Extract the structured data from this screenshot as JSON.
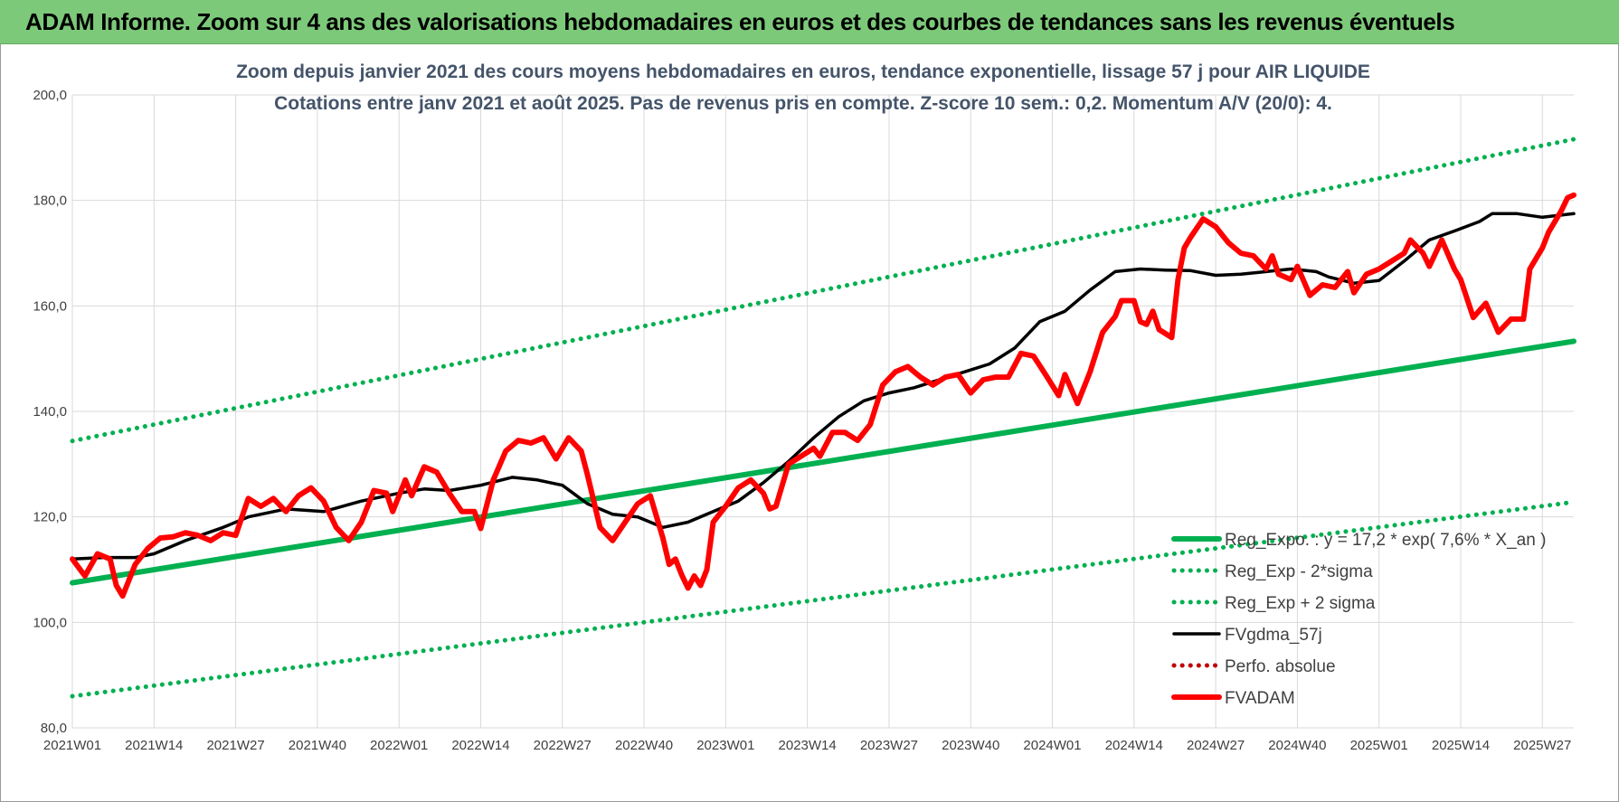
{
  "banner": {
    "title": "ADAM Informe. Zoom sur 4 ans des valorisations hebdomadaires en euros et des courbes de tendances sans les revenus éventuels"
  },
  "colors": {
    "banner_bg": "#7dc97a",
    "trend": "#00b050",
    "fvgdma": "#000000",
    "fvadam": "#ff0000",
    "perfo": "#c00000",
    "title_text": "#44546a",
    "gridline": "#d9d9d9"
  },
  "chart_data": {
    "type": "line",
    "title": "Zoom depuis janvier 2021 des cours moyens hebdomadaires en euros, tendance exponentielle, lissage 57 j pour AIR LIQUIDE",
    "subtitle": "Cotations entre janv 2021 et août 2025. Pas de revenus pris en compte. Z-score 10 sem.: 0,2. Momentum A/V (20/0): 4.",
    "ylim": [
      80,
      200
    ],
    "yticks": [
      "80,0",
      "100,0",
      "120,0",
      "140,0",
      "160,0",
      "180,0",
      "200,0"
    ],
    "yticks_values": [
      80,
      100,
      120,
      140,
      160,
      180,
      200
    ],
    "x_range_weeks": [
      0,
      239
    ],
    "xticks": [
      {
        "label": "2021W01",
        "week": 0
      },
      {
        "label": "2021W14",
        "week": 13
      },
      {
        "label": "2021W27",
        "week": 26
      },
      {
        "label": "2021W40",
        "week": 39
      },
      {
        "label": "2022W01",
        "week": 52
      },
      {
        "label": "2022W14",
        "week": 65
      },
      {
        "label": "2022W27",
        "week": 78
      },
      {
        "label": "2022W40",
        "week": 91
      },
      {
        "label": "2023W01",
        "week": 104
      },
      {
        "label": "2023W14",
        "week": 117
      },
      {
        "label": "2023W27",
        "week": 130
      },
      {
        "label": "2023W40",
        "week": 143
      },
      {
        "label": "2024W01",
        "week": 156
      },
      {
        "label": "2024W14",
        "week": 169
      },
      {
        "label": "2024W27",
        "week": 182
      },
      {
        "label": "2024W40",
        "week": 195
      },
      {
        "label": "2025W01",
        "week": 208
      },
      {
        "label": "2025W14",
        "week": 221
      },
      {
        "label": "2025W27",
        "week": 234
      }
    ],
    "grid": true,
    "legend_position": "bottom-right",
    "series": [
      {
        "name": "Reg_Expo. : y = 17,2 * exp( 7,6% * X_an )",
        "style": "solid-thick",
        "color": "#00b050",
        "points": [
          [
            0,
            107.5
          ],
          [
            239,
            153.3
          ]
        ]
      },
      {
        "name": "Reg_Exp - 2*sigma",
        "style": "dotted",
        "color": "#00b050",
        "points": [
          [
            0,
            86.0
          ],
          [
            239,
            122.8
          ]
        ]
      },
      {
        "name": "Reg_Exp + 2 sigma",
        "style": "dotted",
        "color": "#00b050",
        "points": [
          [
            0,
            134.4
          ],
          [
            239,
            191.6
          ]
        ]
      },
      {
        "name": "FVgdma_57j",
        "style": "solid",
        "color": "#000000",
        "points": [
          [
            0,
            112
          ],
          [
            5,
            112.3
          ],
          [
            10,
            112.3
          ],
          [
            13,
            113
          ],
          [
            18,
            115.5
          ],
          [
            24,
            118
          ],
          [
            28,
            120
          ],
          [
            34,
            121.5
          ],
          [
            40,
            121
          ],
          [
            46,
            123
          ],
          [
            52,
            124.5
          ],
          [
            56,
            125.3
          ],
          [
            60,
            125
          ],
          [
            65,
            126
          ],
          [
            70,
            127.5
          ],
          [
            74,
            127
          ],
          [
            78,
            126
          ],
          [
            82,
            122.5
          ],
          [
            86,
            120.5
          ],
          [
            90,
            120
          ],
          [
            94,
            118
          ],
          [
            98,
            119
          ],
          [
            102,
            121
          ],
          [
            106,
            123
          ],
          [
            110,
            126.5
          ],
          [
            114,
            130.5
          ],
          [
            118,
            135
          ],
          [
            122,
            139
          ],
          [
            126,
            142
          ],
          [
            130,
            143.5
          ],
          [
            134,
            144.5
          ],
          [
            138,
            146
          ],
          [
            142,
            147.5
          ],
          [
            146,
            149
          ],
          [
            150,
            152
          ],
          [
            154,
            157
          ],
          [
            158,
            159
          ],
          [
            162,
            163
          ],
          [
            166,
            166.5
          ],
          [
            170,
            167
          ],
          [
            174,
            166.8
          ],
          [
            178,
            166.7
          ],
          [
            182,
            165.8
          ],
          [
            186,
            166
          ],
          [
            190,
            166.5
          ],
          [
            194,
            167
          ],
          [
            198,
            166.5
          ],
          [
            200,
            165.5
          ],
          [
            204,
            164.3
          ],
          [
            208,
            164.8
          ],
          [
            212,
            168.5
          ],
          [
            216,
            172.5
          ],
          [
            220,
            174.2
          ],
          [
            224,
            176
          ],
          [
            226,
            177.5
          ],
          [
            230,
            177.5
          ],
          [
            234,
            176.8
          ],
          [
            239,
            177.5
          ]
        ]
      },
      {
        "name": "Perfo. absolue",
        "style": "dotted",
        "color": "#c00000",
        "points": []
      },
      {
        "name": "FVADAM",
        "style": "solid-thick",
        "color": "#ff0000",
        "points": [
          [
            0,
            112
          ],
          [
            2,
            108.8
          ],
          [
            4,
            113
          ],
          [
            6,
            112
          ],
          [
            7,
            107
          ],
          [
            8,
            105
          ],
          [
            10,
            111
          ],
          [
            12,
            114
          ],
          [
            14,
            116
          ],
          [
            16,
            116.2
          ],
          [
            18,
            117
          ],
          [
            20,
            116.5
          ],
          [
            22,
            115.5
          ],
          [
            24,
            117
          ],
          [
            26,
            116.5
          ],
          [
            28,
            123.5
          ],
          [
            30,
            122
          ],
          [
            32,
            123.5
          ],
          [
            34,
            121
          ],
          [
            36,
            124
          ],
          [
            38,
            125.5
          ],
          [
            40,
            123
          ],
          [
            42,
            118
          ],
          [
            44,
            115.5
          ],
          [
            46,
            119
          ],
          [
            48,
            125
          ],
          [
            50,
            124.5
          ],
          [
            51,
            121
          ],
          [
            53,
            127
          ],
          [
            54,
            124
          ],
          [
            56,
            129.5
          ],
          [
            58,
            128.5
          ],
          [
            60,
            124.5
          ],
          [
            62,
            121
          ],
          [
            64,
            121
          ],
          [
            65,
            117.8
          ],
          [
            67,
            127
          ],
          [
            69,
            132.5
          ],
          [
            71,
            134.5
          ],
          [
            73,
            134
          ],
          [
            75,
            135
          ],
          [
            77,
            131
          ],
          [
            79,
            135
          ],
          [
            81,
            132.5
          ],
          [
            82,
            128
          ],
          [
            84,
            118
          ],
          [
            86,
            115.5
          ],
          [
            88,
            119
          ],
          [
            90,
            122.5
          ],
          [
            92,
            124
          ],
          [
            94,
            116
          ],
          [
            95,
            111
          ],
          [
            96,
            112
          ],
          [
            97,
            109
          ],
          [
            98,
            106.5
          ],
          [
            99,
            108.8
          ],
          [
            100,
            107
          ],
          [
            101,
            110
          ],
          [
            102,
            119
          ],
          [
            104,
            122
          ],
          [
            106,
            125.5
          ],
          [
            108,
            127
          ],
          [
            110,
            124.5
          ],
          [
            111,
            121.5
          ],
          [
            112,
            122
          ],
          [
            114,
            130
          ],
          [
            116,
            131.5
          ],
          [
            118,
            133
          ],
          [
            119,
            131.5
          ],
          [
            121,
            136
          ],
          [
            123,
            136
          ],
          [
            125,
            134.5
          ],
          [
            127,
            137.5
          ],
          [
            129,
            145
          ],
          [
            131,
            147.5
          ],
          [
            133,
            148.5
          ],
          [
            135,
            146.5
          ],
          [
            137,
            145
          ],
          [
            139,
            146.5
          ],
          [
            141,
            147
          ],
          [
            143,
            143.5
          ],
          [
            145,
            146
          ],
          [
            147,
            146.5
          ],
          [
            149,
            146.5
          ],
          [
            151,
            151
          ],
          [
            153,
            150.5
          ],
          [
            155,
            146.8
          ],
          [
            157,
            143
          ],
          [
            158,
            147
          ],
          [
            160,
            141.5
          ],
          [
            162,
            147.5
          ],
          [
            164,
            155
          ],
          [
            166,
            158
          ],
          [
            167,
            161
          ],
          [
            169,
            161
          ],
          [
            170,
            157
          ],
          [
            171,
            156.5
          ],
          [
            172,
            159
          ],
          [
            173,
            155.5
          ],
          [
            175,
            154
          ],
          [
            176,
            165
          ],
          [
            177,
            171
          ],
          [
            178,
            173
          ],
          [
            180,
            176.5
          ],
          [
            182,
            175
          ],
          [
            184,
            172
          ],
          [
            186,
            170
          ],
          [
            188,
            169.5
          ],
          [
            190,
            167
          ],
          [
            191,
            169.5
          ],
          [
            192,
            166
          ],
          [
            194,
            165
          ],
          [
            195,
            167.5
          ],
          [
            197,
            162
          ],
          [
            199,
            164
          ],
          [
            201,
            163.5
          ],
          [
            203,
            166.5
          ],
          [
            204,
            162.5
          ],
          [
            206,
            166
          ],
          [
            208,
            167
          ],
          [
            210,
            168.5
          ],
          [
            212,
            170
          ],
          [
            213,
            172.5
          ],
          [
            215,
            170
          ],
          [
            216,
            167.5
          ],
          [
            218,
            172.5
          ],
          [
            220,
            167
          ],
          [
            221,
            165
          ],
          [
            223,
            157.8
          ],
          [
            225,
            160.5
          ],
          [
            227,
            155
          ],
          [
            229,
            157.5
          ],
          [
            231,
            157.5
          ],
          [
            232,
            167
          ],
          [
            234,
            171
          ],
          [
            235,
            174
          ],
          [
            237,
            178
          ],
          [
            238,
            180.5
          ],
          [
            239,
            181
          ]
        ]
      }
    ],
    "legend": [
      {
        "label": "Reg_Expo. : y = 17,2 * exp( 7,6% *  X_an )",
        "style": "solid-thick",
        "color": "#00b050"
      },
      {
        "label": "Reg_Exp - 2*sigma",
        "style": "dotted",
        "color": "#00b050"
      },
      {
        "label": "Reg_Exp + 2 sigma",
        "style": "dotted",
        "color": "#00b050"
      },
      {
        "label": "FVgdma_57j",
        "style": "solid",
        "color": "#000000"
      },
      {
        "label": "Perfo. absolue",
        "style": "dotted",
        "color": "#c00000"
      },
      {
        "label": "FVADAM",
        "style": "solid-thick",
        "color": "#ff0000"
      }
    ]
  }
}
